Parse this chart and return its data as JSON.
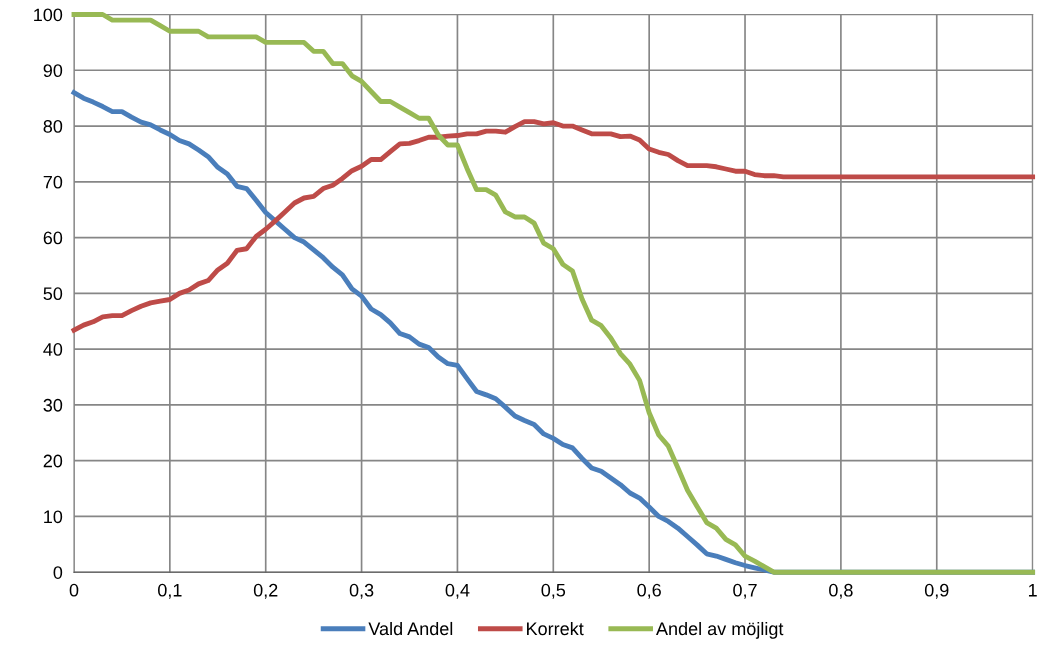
{
  "chart_data": {
    "type": "line",
    "x": [
      0,
      0.01,
      0.02,
      0.03,
      0.04,
      0.05,
      0.06,
      0.07,
      0.08,
      0.09,
      0.1,
      0.11,
      0.12,
      0.13,
      0.14,
      0.15,
      0.16,
      0.17,
      0.18,
      0.19,
      0.2,
      0.21,
      0.22,
      0.23,
      0.24,
      0.25,
      0.26,
      0.27,
      0.28,
      0.29,
      0.3,
      0.31,
      0.32,
      0.33,
      0.34,
      0.35,
      0.36,
      0.37,
      0.38,
      0.39,
      0.4,
      0.41,
      0.42,
      0.43,
      0.44,
      0.45,
      0.46,
      0.47,
      0.48,
      0.49,
      0.5,
      0.51,
      0.52,
      0.53,
      0.54,
      0.55,
      0.56,
      0.57,
      0.58,
      0.59,
      0.6,
      0.61,
      0.62,
      0.63,
      0.64,
      0.65,
      0.66,
      0.67,
      0.68,
      0.69,
      0.7,
      0.71,
      0.72,
      0.73,
      0.74,
      1.0
    ],
    "series": [
      {
        "name": "Vald Andel",
        "color": "#4a7ebb",
        "values": [
          86,
          85,
          84.3,
          83.5,
          82.6,
          82.6,
          81.6,
          80.7,
          80.2,
          79.3,
          78.5,
          77.4,
          76.8,
          75.7,
          74.5,
          72.6,
          71.4,
          69.2,
          68.8,
          66.7,
          64.5,
          63,
          61.5,
          60,
          59.2,
          57.8,
          56.4,
          54.7,
          53.3,
          50.8,
          49.5,
          47.2,
          46.2,
          44.7,
          42.8,
          42.2,
          40.9,
          40.3,
          38.6,
          37.4,
          37.1,
          34.7,
          32.4,
          31.8,
          31.1,
          29.6,
          28,
          27.2,
          26.5,
          24.8,
          24,
          22.9,
          22.3,
          20.4,
          18.7,
          18.1,
          16.9,
          15.7,
          14.2,
          13.3,
          11.7,
          10,
          9.1,
          7.9,
          6.4,
          4.9,
          3.3,
          2.9,
          2.3,
          1.7,
          1.2,
          0.8,
          0.4,
          0,
          0,
          0
        ]
      },
      {
        "name": "Korrekt",
        "color": "#be4b48",
        "values": [
          43.4,
          44.3,
          44.9,
          45.8,
          46,
          46,
          46.9,
          47.7,
          48.3,
          48.6,
          48.9,
          50,
          50.6,
          51.7,
          52.3,
          54.2,
          55.4,
          57.7,
          58,
          60.2,
          61.5,
          63,
          64.6,
          66.2,
          67.1,
          67.4,
          68.8,
          69.4,
          70.6,
          72,
          72.8,
          74,
          74,
          75.4,
          76.8,
          76.9,
          77.4,
          78,
          78,
          78.2,
          78.3,
          78.6,
          78.6,
          79.1,
          79.1,
          78.9,
          79.9,
          80.8,
          80.8,
          80.4,
          80.6,
          80,
          80,
          79.3,
          78.6,
          78.6,
          78.6,
          78.1,
          78.2,
          77.5,
          75.9,
          75.3,
          74.9,
          73.8,
          72.9,
          72.9,
          72.9,
          72.7,
          72.3,
          71.9,
          71.9,
          71.3,
          71.1,
          71.1,
          70.9,
          70.9
        ]
      },
      {
        "name": "Andel av möjligt",
        "color": "#98b954",
        "values": [
          100,
          100,
          100,
          100,
          99,
          99,
          99,
          99,
          99,
          98,
          97,
          97,
          97,
          97,
          96,
          96,
          96,
          96,
          96,
          96,
          95,
          95,
          95,
          95,
          95,
          93.4,
          93.4,
          91.2,
          91.2,
          89,
          88,
          86.2,
          84.4,
          84.4,
          83.4,
          82.4,
          81.4,
          81.4,
          78.4,
          76.6,
          76.6,
          72.4,
          68.6,
          68.6,
          67.6,
          64.6,
          63.7,
          63.7,
          62.6,
          59,
          58,
          55.2,
          54,
          49,
          45.2,
          44.2,
          42,
          39.2,
          37.3,
          34.4,
          28.6,
          24.6,
          22.6,
          18.7,
          14.7,
          11.8,
          8.9,
          7.9,
          5.9,
          4.9,
          2.9,
          2,
          1,
          0,
          0,
          0
        ]
      }
    ],
    "xlim": [
      0,
      1
    ],
    "xticks": [
      0,
      {
        "value": 0.1,
        "label": "0,1"
      },
      {
        "value": 0.2,
        "label": "0,2"
      },
      {
        "value": 0.3,
        "label": "0,3"
      },
      {
        "value": 0.4,
        "label": "0,4"
      },
      {
        "value": 0.5,
        "label": "0,5"
      },
      {
        "value": 0.6,
        "label": "0,6"
      },
      {
        "value": 0.7,
        "label": "0,7"
      },
      {
        "value": 0.8,
        "label": "0,8"
      },
      {
        "value": 0.9,
        "label": "0,9"
      },
      1
    ],
    "ylim": [
      0,
      100
    ],
    "yticks": [
      0,
      10,
      20,
      30,
      40,
      50,
      60,
      70,
      80,
      90,
      100
    ],
    "grid": true,
    "legend": "bottom",
    "marker": "none",
    "line_style": "solid"
  }
}
